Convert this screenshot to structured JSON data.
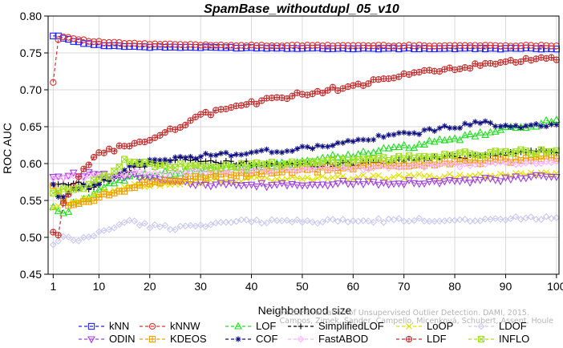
{
  "chart_data": {
    "type": "line",
    "title": "SpamBase_withoutdupl_05_v10",
    "xlabel": "Neighborhood size",
    "ylabel": "ROC AUC",
    "xlim": [
      0,
      100.5
    ],
    "ylim": [
      0.45,
      0.8
    ],
    "xticks": [
      1,
      10,
      20,
      30,
      40,
      50,
      60,
      70,
      80,
      90,
      100
    ],
    "yticks": [
      0.45,
      0.5,
      0.55,
      0.6,
      0.65,
      0.7,
      0.75,
      0.8
    ],
    "yticklabels": [
      "0.45",
      "0.50",
      "0.55",
      "0.60",
      "0.65",
      "0.70",
      "0.75",
      "0.80"
    ],
    "legend_position": "bottom",
    "credit": [
      "On the Evaluation of Unsupervised Outlier Detection. DAMI, 2015.",
      "Campos, Zimek, Sander, Campello, Micenková, Schubert, Assent, Houle"
    ],
    "series": [
      {
        "name": "kNN",
        "color": "#2020ff",
        "marker": "square",
        "anchors": [
          [
            1,
            0.773
          ],
          [
            2,
            0.773
          ],
          [
            3,
            0.77
          ],
          [
            5,
            0.766
          ],
          [
            8,
            0.762
          ],
          [
            12,
            0.76
          ],
          [
            20,
            0.758
          ],
          [
            40,
            0.757
          ],
          [
            60,
            0.756
          ],
          [
            80,
            0.756
          ],
          [
            100,
            0.756
          ]
        ]
      },
      {
        "name": "kNNW",
        "color": "#e03030",
        "marker": "circle",
        "anchors": [
          [
            1,
            0.71
          ],
          [
            2,
            0.768
          ],
          [
            3,
            0.772
          ],
          [
            5,
            0.77
          ],
          [
            8,
            0.766
          ],
          [
            12,
            0.764
          ],
          [
            20,
            0.762
          ],
          [
            40,
            0.76
          ],
          [
            60,
            0.76
          ],
          [
            80,
            0.76
          ],
          [
            100,
            0.76
          ]
        ]
      },
      {
        "name": "LOF",
        "color": "#20dd20",
        "marker": "triangle-up",
        "anchors": [
          [
            1,
            0.541
          ],
          [
            3,
            0.53
          ],
          [
            5,
            0.545
          ],
          [
            8,
            0.555
          ],
          [
            12,
            0.57
          ],
          [
            16,
            0.582
          ],
          [
            20,
            0.585
          ],
          [
            30,
            0.59
          ],
          [
            40,
            0.594
          ],
          [
            50,
            0.603
          ],
          [
            60,
            0.612
          ],
          [
            70,
            0.622
          ],
          [
            80,
            0.633
          ],
          [
            90,
            0.646
          ],
          [
            100,
            0.658
          ]
        ]
      },
      {
        "name": "SimplifiedLOF",
        "color": "#000000",
        "marker": "plus",
        "anchors": [
          [
            1,
            0.572
          ],
          [
            3,
            0.572
          ],
          [
            5,
            0.575
          ],
          [
            8,
            0.568
          ],
          [
            12,
            0.578
          ],
          [
            16,
            0.59
          ],
          [
            20,
            0.6
          ],
          [
            25,
            0.606
          ],
          [
            30,
            0.603
          ],
          [
            40,
            0.6
          ],
          [
            50,
            0.598
          ],
          [
            60,
            0.6
          ],
          [
            70,
            0.604
          ],
          [
            80,
            0.609
          ],
          [
            90,
            0.614
          ],
          [
            100,
            0.618
          ]
        ]
      },
      {
        "name": "LoOP",
        "color": "#e0e000",
        "marker": "x",
        "anchors": [
          [
            1,
            0.54
          ],
          [
            3,
            0.545
          ],
          [
            5,
            0.55
          ],
          [
            8,
            0.556
          ],
          [
            12,
            0.562
          ],
          [
            16,
            0.568
          ],
          [
            20,
            0.572
          ],
          [
            30,
            0.576
          ],
          [
            40,
            0.578
          ],
          [
            50,
            0.58
          ],
          [
            60,
            0.581
          ],
          [
            70,
            0.582
          ],
          [
            80,
            0.583
          ],
          [
            90,
            0.585
          ],
          [
            100,
            0.588
          ]
        ]
      },
      {
        "name": "LDOF",
        "color": "#c8c8ee",
        "marker": "diamond",
        "anchors": [
          [
            1,
            0.49
          ],
          [
            3,
            0.5
          ],
          [
            5,
            0.495
          ],
          [
            8,
            0.5
          ],
          [
            12,
            0.512
          ],
          [
            16,
            0.522
          ],
          [
            20,
            0.515
          ],
          [
            25,
            0.513
          ],
          [
            30,
            0.517
          ],
          [
            40,
            0.522
          ],
          [
            50,
            0.522
          ],
          [
            60,
            0.522
          ],
          [
            70,
            0.523
          ],
          [
            80,
            0.524
          ],
          [
            90,
            0.525
          ],
          [
            100,
            0.528
          ]
        ]
      },
      {
        "name": "ODIN",
        "color": "#a040e0",
        "marker": "triangle-down",
        "anchors": [
          [
            1,
            0.582
          ],
          [
            3,
            0.583
          ],
          [
            5,
            0.585
          ],
          [
            8,
            0.586
          ],
          [
            12,
            0.585
          ],
          [
            16,
            0.584
          ],
          [
            20,
            0.582
          ],
          [
            25,
            0.578
          ],
          [
            30,
            0.572
          ],
          [
            40,
            0.57
          ],
          [
            50,
            0.572
          ],
          [
            60,
            0.574
          ],
          [
            70,
            0.575
          ],
          [
            80,
            0.576
          ],
          [
            90,
            0.579
          ],
          [
            100,
            0.583
          ]
        ]
      },
      {
        "name": "KDEOS",
        "color": "#f0a000",
        "marker": "square-cross",
        "anchors": [
          [
            1,
            0.57
          ],
          [
            3,
            0.55
          ],
          [
            5,
            0.543
          ],
          [
            8,
            0.548
          ],
          [
            12,
            0.558
          ],
          [
            16,
            0.568
          ],
          [
            20,
            0.574
          ],
          [
            30,
            0.582
          ],
          [
            40,
            0.586
          ],
          [
            50,
            0.59
          ],
          [
            60,
            0.595
          ],
          [
            70,
            0.598
          ],
          [
            80,
            0.602
          ],
          [
            90,
            0.604
          ],
          [
            100,
            0.608
          ]
        ]
      },
      {
        "name": "COF",
        "color": "#101080",
        "marker": "asterisk",
        "anchors": [
          [
            1,
            0.572
          ],
          [
            2,
            0.555
          ],
          [
            4,
            0.56
          ],
          [
            6,
            0.566
          ],
          [
            10,
            0.575
          ],
          [
            14,
            0.588
          ],
          [
            18,
            0.6
          ],
          [
            22,
            0.605
          ],
          [
            30,
            0.61
          ],
          [
            40,
            0.615
          ],
          [
            50,
            0.62
          ],
          [
            60,
            0.63
          ],
          [
            70,
            0.64
          ],
          [
            80,
            0.65
          ],
          [
            85,
            0.655
          ],
          [
            90,
            0.652
          ],
          [
            100,
            0.65
          ]
        ]
      },
      {
        "name": "FastABOD",
        "color": "#ffb0ff",
        "marker": "diamond",
        "anchors": [
          [
            1,
            0.58
          ],
          [
            3,
            0.582
          ],
          [
            5,
            0.581
          ],
          [
            8,
            0.583
          ],
          [
            12,
            0.585
          ],
          [
            16,
            0.587
          ],
          [
            20,
            0.588
          ],
          [
            30,
            0.59
          ],
          [
            40,
            0.591
          ],
          [
            50,
            0.592
          ],
          [
            60,
            0.594
          ],
          [
            70,
            0.596
          ],
          [
            80,
            0.598
          ],
          [
            90,
            0.6
          ],
          [
            100,
            0.602
          ]
        ]
      },
      {
        "name": "LDF",
        "color": "#c03030",
        "marker": "circle-plus",
        "anchors": [
          [
            1,
            0.507
          ],
          [
            2,
            0.503
          ],
          [
            3,
            0.545
          ],
          [
            6,
            0.58
          ],
          [
            9,
            0.61
          ],
          [
            12,
            0.618
          ],
          [
            15,
            0.623
          ],
          [
            18,
            0.63
          ],
          [
            22,
            0.636
          ],
          [
            26,
            0.652
          ],
          [
            30,
            0.665
          ],
          [
            35,
            0.675
          ],
          [
            40,
            0.682
          ],
          [
            45,
            0.688
          ],
          [
            50,
            0.694
          ],
          [
            55,
            0.7
          ],
          [
            60,
            0.705
          ],
          [
            65,
            0.712
          ],
          [
            70,
            0.72
          ],
          [
            75,
            0.725
          ],
          [
            80,
            0.729
          ],
          [
            85,
            0.733
          ],
          [
            90,
            0.737
          ],
          [
            95,
            0.74
          ],
          [
            100,
            0.742
          ]
        ]
      },
      {
        "name": "INFLO",
        "color": "#a0e020",
        "marker": "square-x",
        "anchors": [
          [
            1,
            0.56
          ],
          [
            3,
            0.565
          ],
          [
            5,
            0.562
          ],
          [
            8,
            0.572
          ],
          [
            12,
            0.585
          ],
          [
            15,
            0.605
          ],
          [
            18,
            0.6
          ],
          [
            22,
            0.598
          ],
          [
            30,
            0.595
          ],
          [
            40,
            0.598
          ],
          [
            50,
            0.6
          ],
          [
            60,
            0.604
          ],
          [
            70,
            0.608
          ],
          [
            80,
            0.612
          ],
          [
            90,
            0.615
          ],
          [
            100,
            0.617
          ]
        ]
      }
    ]
  }
}
